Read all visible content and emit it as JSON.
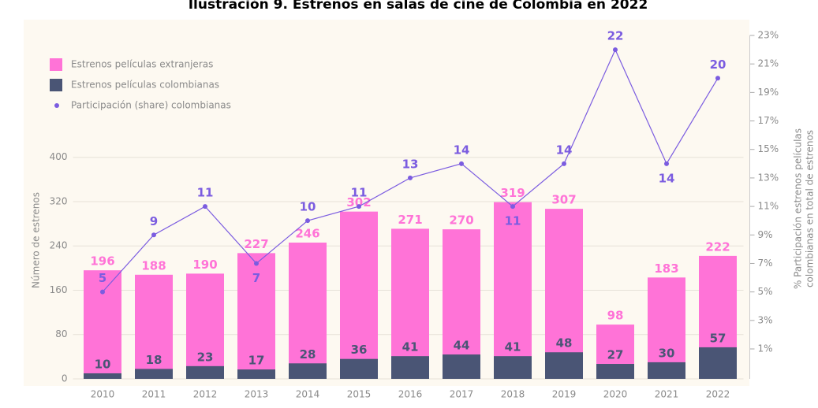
{
  "chart_data": {
    "type": "bar-line",
    "title": "Ilustración 9. Estrenos en salas de cine de Colombia en 2022",
    "ylabel": "Número de estrenos",
    "y2label": [
      "% Participación estrenos películas",
      "colombianas en total de estrenos"
    ],
    "categories": [
      "2010",
      "2011",
      "2012",
      "2013",
      "2014",
      "2015",
      "2016",
      "2017",
      "2018",
      "2019",
      "2020",
      "2021",
      "2022"
    ],
    "series": [
      {
        "name": "Estrenos películas extranjeras",
        "color": "#ff73d7",
        "values": [
          196,
          188,
          190,
          227,
          246,
          302,
          271,
          270,
          319,
          307,
          98,
          183,
          222
        ]
      },
      {
        "name": "Estrenos películas colombianas",
        "color": "#4a5575",
        "values": [
          10,
          18,
          23,
          17,
          28,
          36,
          41,
          44,
          41,
          48,
          27,
          30,
          57
        ]
      },
      {
        "name": "Participación (share) colombianas",
        "color": "#7b5ce0",
        "axis": "y2",
        "values": [
          5,
          9,
          11,
          7,
          10,
          11,
          13,
          14,
          11,
          14,
          22,
          14,
          20
        ]
      }
    ],
    "ylim": [
      0,
      620
    ],
    "yticks": [
      0,
      80,
      160,
      240,
      320,
      400
    ],
    "y2lim": [
      -1.1,
      23
    ],
    "y2ticks": [
      {
        "value": 1,
        "label": "1%"
      },
      {
        "value": 3,
        "label": "3%"
      },
      {
        "value": 5,
        "label": "5%"
      },
      {
        "value": 7,
        "label": "7%"
      },
      {
        "value": 9,
        "label": "9%"
      },
      {
        "value": 11,
        "label": "11%"
      },
      {
        "value": 13,
        "label": "13%"
      },
      {
        "value": 15,
        "label": "15%"
      },
      {
        "value": 17,
        "label": "17%"
      },
      {
        "value": 19,
        "label": "19%"
      },
      {
        "value": 21,
        "label": "21%"
      },
      {
        "value": 23,
        "label": "23%"
      }
    ],
    "grid": true
  }
}
